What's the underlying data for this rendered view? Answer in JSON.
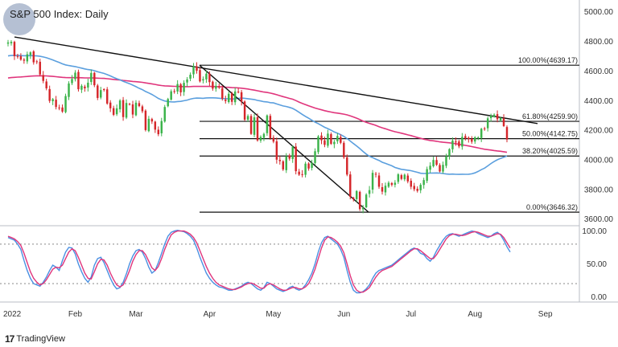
{
  "title": "S&P 500 Index: Daily",
  "brand": "TradingView",
  "colors": {
    "up": "#3bb34a",
    "down": "#d5262a",
    "ma_magenta": "#e0357c",
    "ma_blue": "#5b9fde",
    "stoch_k": "#4a90e2",
    "stoch_d": "#e0357c",
    "trendline": "#111111",
    "fib_line": "#111111"
  },
  "chart_data": [
    {
      "type": "candlestick",
      "title": "S&P 500 Index: Daily",
      "x_labels": [
        "2022",
        "Feb",
        "Mar",
        "Apr",
        "May",
        "Jun",
        "Jul",
        "Aug",
        "Sep"
      ],
      "y_ticks": [
        "5000.00",
        "4800.00",
        "4600.00",
        "4400.00",
        "4200.00",
        "4000.00",
        "3800.00",
        "3600.00"
      ],
      "ylim": [
        3560,
        5080
      ],
      "closes": [
        4793,
        4797,
        4700,
        4696,
        4677,
        4670,
        4713,
        4726,
        4659,
        4662,
        4577,
        4533,
        4483,
        4398,
        4410,
        4357,
        4350,
        4326,
        4431,
        4516,
        4546,
        4589,
        4477,
        4500,
        4483,
        4521,
        4587,
        4504,
        4418,
        4471,
        4475,
        4380,
        4348,
        4304,
        4348,
        4401,
        4289,
        4384,
        4374,
        4306,
        4386,
        4363,
        4328,
        4201,
        4277,
        4259,
        4204,
        4173,
        4262,
        4357,
        4411,
        4463,
        4461,
        4512,
        4456,
        4520,
        4543,
        4575,
        4631,
        4602,
        4530,
        4545,
        4582,
        4525,
        4481,
        4500,
        4488,
        4413,
        4397,
        4446,
        4392,
        4462,
        4459,
        4393,
        4271,
        4296,
        4175,
        4287,
        4131,
        4155,
        4175,
        4300,
        4146,
        4123,
        4001,
        3991,
        3935,
        4023,
        4008,
        4088,
        3923,
        3900,
        3901,
        3974,
        3941,
        3978,
        4058,
        4158,
        4132,
        4101,
        4177,
        4108,
        4121,
        4161,
        4115,
        4017,
        3900,
        3750,
        3735,
        3789,
        3667,
        3674,
        3765,
        3795,
        3912,
        3900,
        3818,
        3785,
        3825,
        3845,
        3831,
        3845,
        3902,
        3871,
        3899,
        3854,
        3818,
        3801,
        3790,
        3831,
        3863,
        3937,
        3960,
        3999,
        3966,
        3921,
        3966,
        4024,
        4072,
        4130,
        4118,
        4091,
        4155,
        4145,
        4140,
        4122,
        4152,
        4151,
        4210,
        4207,
        4280,
        4297,
        4305,
        4274,
        4283,
        4228,
        4137
      ],
      "fib_levels": [
        {
          "pct": "100.00%",
          "label": "100.00%(4639.17)",
          "price": 4639.17
        },
        {
          "pct": "61.80%",
          "label": "61.80%(4259.90)",
          "price": 4259.9
        },
        {
          "pct": "50.00%",
          "label": "50.00%(4142.75)",
          "price": 4142.75
        },
        {
          "pct": "38.20%",
          "label": "38.20%(4025.59)",
          "price": 4025.59
        },
        {
          "pct": "0.00%",
          "label": "0.00%(3646.32)",
          "price": 3646.32
        }
      ],
      "grid": false
    },
    {
      "type": "line",
      "title": "",
      "y_ticks": [
        "100.00",
        "50.00",
        "0.00"
      ],
      "ylim": [
        -8,
        108
      ],
      "reference_lines": [
        80,
        20
      ],
      "series": [
        {
          "name": "",
          "values": [
            90,
            88,
            86,
            80,
            72,
            55,
            40,
            28,
            20,
            18,
            16,
            22,
            30,
            40,
            48,
            45,
            40,
            55,
            68,
            75,
            74,
            65,
            50,
            38,
            28,
            22,
            30,
            48,
            58,
            60,
            52,
            40,
            28,
            18,
            12,
            14,
            22,
            35,
            50,
            62,
            70,
            72,
            68,
            58,
            45,
            36,
            40,
            52,
            66,
            80,
            92,
            98,
            100,
            101,
            100,
            99,
            96,
            92,
            86,
            74,
            60,
            48,
            36,
            28,
            22,
            18,
            15,
            14,
            12,
            10,
            10,
            12,
            14,
            16,
            20,
            22,
            20,
            16,
            12,
            10,
            14,
            22,
            20,
            16,
            12,
            10,
            8,
            10,
            14,
            16,
            12,
            10,
            12,
            18,
            26,
            36,
            50,
            68,
            82,
            90,
            92,
            88,
            84,
            80,
            72,
            60,
            40,
            22,
            10,
            6,
            6,
            8,
            12,
            18,
            28,
            36,
            40,
            42,
            44,
            46,
            48,
            52,
            56,
            60,
            64,
            68,
            72,
            74,
            72,
            66,
            64,
            58,
            54,
            60,
            70,
            78,
            86,
            92,
            95,
            96,
            94,
            92,
            94,
            96,
            98,
            100,
            99,
            96,
            94,
            92,
            90,
            92,
            96,
            98,
            94,
            86,
            76,
            68
          ]
        },
        {
          "name": "",
          "values": [
            92,
            90,
            88,
            84,
            78,
            66,
            52,
            38,
            28,
            22,
            18,
            20,
            26,
            34,
            42,
            45,
            44,
            48,
            58,
            68,
            73,
            70,
            60,
            48,
            36,
            28,
            27,
            38,
            50,
            57,
            56,
            48,
            36,
            26,
            18,
            15,
            18,
            28,
            40,
            54,
            64,
            70,
            70,
            64,
            54,
            44,
            40,
            46,
            58,
            72,
            84,
            94,
            98,
            100,
            100,
            100,
            98,
            95,
            90,
            82,
            70,
            58,
            46,
            36,
            28,
            22,
            18,
            16,
            14,
            12,
            11,
            11,
            13,
            15,
            18,
            20,
            21,
            19,
            16,
            13,
            13,
            18,
            20,
            18,
            15,
            12,
            10,
            10,
            12,
            14,
            14,
            12,
            12,
            15,
            20,
            30,
            42,
            58,
            74,
            86,
            91,
            90,
            87,
            83,
            77,
            67,
            50,
            32,
            18,
            10,
            7,
            7,
            10,
            14,
            22,
            30,
            36,
            40,
            42,
            44,
            46,
            50,
            54,
            58,
            62,
            66,
            70,
            73,
            73,
            70,
            66,
            62,
            58,
            58,
            64,
            72,
            80,
            88,
            93,
            95,
            95,
            94,
            93,
            94,
            96,
            98,
            99,
            98,
            96,
            94,
            92,
            92,
            94,
            96,
            95,
            90,
            82,
            74
          ]
        }
      ]
    }
  ]
}
